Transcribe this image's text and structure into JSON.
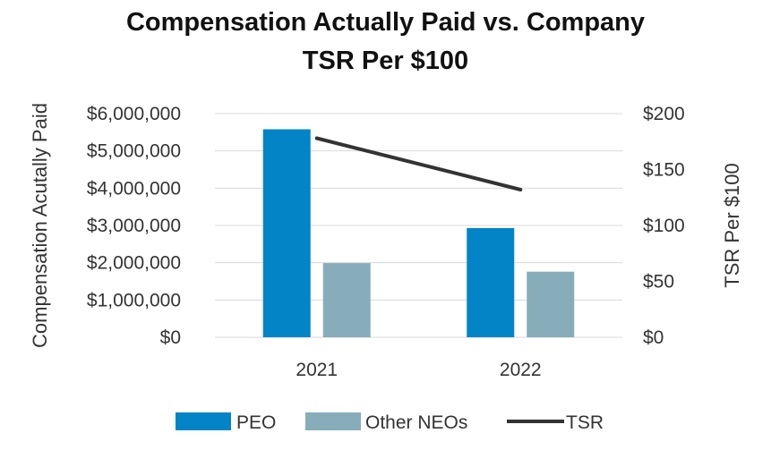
{
  "chart_data": {
    "type": "bar",
    "title_line1": "Compensation Actually Paid vs. Company",
    "title_line2": "TSR Per $100",
    "categories": [
      "2021",
      "2022"
    ],
    "series": [
      {
        "name": "PEO",
        "kind": "bar",
        "axis": "left",
        "color": "#0284c7",
        "values": [
          5580000,
          2930000
        ]
      },
      {
        "name": "Other NEOs",
        "kind": "bar",
        "axis": "left",
        "color": "#87adbb",
        "values": [
          1990000,
          1760000
        ]
      },
      {
        "name": "TSR",
        "kind": "line",
        "axis": "right",
        "color": "#333333",
        "values": [
          178,
          132
        ]
      }
    ],
    "ylabel": "Compensation Acutally Paid",
    "y2label": "TSR Per $100",
    "ylim": [
      0,
      6000000
    ],
    "y2lim": [
      0,
      200
    ],
    "yticks": [
      "$0",
      "$1,000,000",
      "$2,000,000",
      "$3,000,000",
      "$4,000,000",
      "$5,000,000",
      "$6,000,000"
    ],
    "y2ticks": [
      "$0",
      "$50",
      "$100",
      "$150",
      "$200"
    ],
    "grid": true,
    "legend_position": "bottom"
  }
}
